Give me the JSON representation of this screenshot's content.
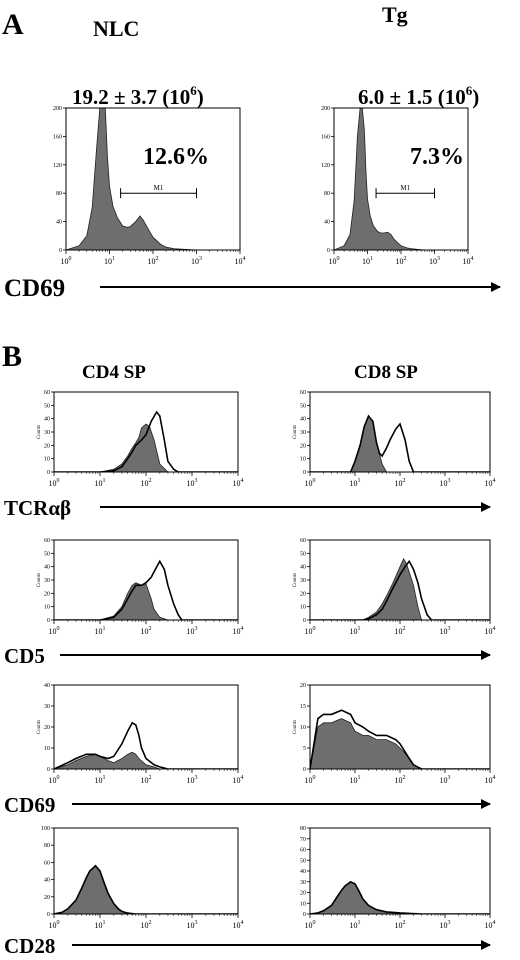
{
  "panelA": {
    "letter": "A",
    "columns": [
      "NLC",
      "Tg"
    ],
    "stats": [
      "19.2 ± 3.7 (10",
      "6.0 ± 1.5 (10"
    ],
    "stat_exp": "6",
    "stat_close": ")",
    "percents": [
      "12.6%",
      "7.3%"
    ],
    "marker": "M1",
    "axis": "CD69"
  },
  "panelB": {
    "letter": "B",
    "columns": [
      "CD4 SP",
      "CD8 SP"
    ],
    "counts_label": "Counts",
    "rows": [
      "TCRαβ",
      "CD5",
      "CD69",
      "CD28"
    ]
  },
  "colors": {
    "fill": "#6e6e6e",
    "line": "#000000"
  },
  "chart_data": [
    {
      "type": "area",
      "id": "A-NLC",
      "xscale": "log",
      "xlim": [
        1,
        10000
      ],
      "ylim": [
        0,
        200
      ],
      "yticks": [
        0,
        40,
        80,
        120,
        160,
        200
      ],
      "xticks": [
        "10^0",
        "10^1",
        "10^2",
        "10^3",
        "10^4"
      ],
      "gate": {
        "label": "M1",
        "x": [
          18,
          1000
        ],
        "percent": "12.6%"
      },
      "series": [
        {
          "style": "filled",
          "x": [
            1,
            2,
            3,
            4,
            5,
            6,
            7,
            8,
            9,
            10,
            12,
            15,
            20,
            25,
            30,
            40,
            50,
            60,
            80,
            100,
            150,
            200,
            300,
            500,
            1000,
            10000
          ],
          "y": [
            0,
            6,
            20,
            60,
            140,
            240,
            250,
            200,
            130,
            90,
            62,
            46,
            34,
            32,
            33,
            40,
            48,
            42,
            28,
            18,
            8,
            4,
            2,
            1,
            0,
            0
          ]
        }
      ]
    },
    {
      "type": "area",
      "id": "A-Tg",
      "xscale": "log",
      "xlim": [
        1,
        10000
      ],
      "ylim": [
        0,
        200
      ],
      "yticks": [
        0,
        40,
        80,
        120,
        160,
        200
      ],
      "xticks": [
        "10^0",
        "10^1",
        "10^2",
        "10^3",
        "10^4"
      ],
      "gate": {
        "label": "M1",
        "x": [
          18,
          1000
        ],
        "percent": "7.3%"
      },
      "series": [
        {
          "style": "filled",
          "x": [
            1,
            2,
            3,
            4,
            5,
            6,
            7,
            8,
            9,
            10,
            12,
            15,
            20,
            25,
            30,
            40,
            50,
            60,
            80,
            100,
            150,
            200,
            300,
            500,
            1000,
            10000
          ],
          "y": [
            0,
            6,
            22,
            70,
            160,
            260,
            250,
            170,
            110,
            72,
            48,
            34,
            26,
            24,
            24,
            25,
            22,
            16,
            10,
            6,
            3,
            2,
            1,
            0,
            0,
            0
          ]
        }
      ]
    },
    {
      "type": "area",
      "id": "B-TCR-CD4",
      "xscale": "log",
      "xlim": [
        1,
        10000
      ],
      "ylim": [
        0,
        60
      ],
      "yticks": [
        0,
        10,
        20,
        30,
        40,
        50,
        60
      ],
      "xticks": [
        "10^0",
        "10^1",
        "10^2",
        "10^3",
        "10^4"
      ],
      "series": [
        {
          "style": "filled",
          "x": [
            1,
            10,
            20,
            30,
            40,
            50,
            60,
            70,
            80,
            100,
            120,
            150,
            200,
            300,
            10000
          ],
          "y": [
            0,
            0,
            2,
            6,
            12,
            18,
            22,
            26,
            33,
            36,
            34,
            24,
            6,
            0,
            0
          ]
        },
        {
          "style": "outline",
          "x": [
            1,
            10,
            20,
            30,
            40,
            50,
            60,
            80,
            100,
            130,
            170,
            200,
            250,
            300,
            400,
            500,
            10000
          ],
          "y": [
            0,
            0,
            1,
            4,
            10,
            15,
            20,
            24,
            28,
            38,
            45,
            42,
            24,
            8,
            2,
            0,
            0
          ]
        }
      ]
    },
    {
      "type": "area",
      "id": "B-TCR-CD8",
      "xscale": "log",
      "xlim": [
        1,
        10000
      ],
      "ylim": [
        0,
        60
      ],
      "yticks": [
        0,
        10,
        20,
        30,
        40,
        50,
        60
      ],
      "xticks": [
        "10^0",
        "10^1",
        "10^2",
        "10^3",
        "10^4"
      ],
      "series": [
        {
          "style": "filled",
          "x": [
            1,
            8,
            10,
            13,
            16,
            20,
            25,
            30,
            40,
            50,
            10000
          ],
          "y": [
            0,
            0,
            8,
            20,
            34,
            42,
            38,
            22,
            6,
            0,
            0
          ]
        },
        {
          "style": "outline",
          "x": [
            1,
            8,
            10,
            13,
            16,
            20,
            25,
            30,
            35,
            40,
            50,
            60,
            80,
            100,
            130,
            160,
            200,
            10000
          ],
          "y": [
            0,
            0,
            8,
            20,
            34,
            42,
            38,
            22,
            14,
            12,
            18,
            24,
            32,
            36,
            24,
            8,
            0,
            0
          ]
        }
      ]
    },
    {
      "type": "area",
      "id": "B-CD5-CD4",
      "xscale": "log",
      "xlim": [
        1,
        10000
      ],
      "ylim": [
        0,
        60
      ],
      "yticks": [
        0,
        10,
        20,
        30,
        40,
        50,
        60
      ],
      "xticks": [
        "10^0",
        "10^1",
        "10^2",
        "10^3",
        "10^4"
      ],
      "series": [
        {
          "style": "filled",
          "x": [
            1,
            10,
            20,
            30,
            40,
            50,
            60,
            80,
            100,
            130,
            150,
            200,
            300,
            10000
          ],
          "y": [
            0,
            0,
            3,
            10,
            20,
            26,
            28,
            26,
            27,
            16,
            8,
            2,
            0,
            0
          ]
        },
        {
          "style": "outline",
          "x": [
            1,
            10,
            20,
            30,
            40,
            50,
            60,
            80,
            100,
            130,
            160,
            200,
            250,
            300,
            400,
            500,
            600,
            10000
          ],
          "y": [
            0,
            0,
            2,
            8,
            16,
            22,
            26,
            26,
            28,
            32,
            38,
            44,
            38,
            26,
            12,
            4,
            0,
            0
          ]
        }
      ]
    },
    {
      "type": "area",
      "id": "B-CD5-CD8",
      "xscale": "log",
      "xlim": [
        1,
        10000
      ],
      "ylim": [
        0,
        60
      ],
      "yticks": [
        0,
        10,
        20,
        30,
        40,
        50,
        60
      ],
      "xticks": [
        "10^0",
        "10^1",
        "10^2",
        "10^3",
        "10^4"
      ],
      "series": [
        {
          "style": "filled",
          "x": [
            1,
            15,
            20,
            30,
            40,
            50,
            70,
            100,
            120,
            140,
            160,
            200,
            250,
            300,
            10000
          ],
          "y": [
            0,
            0,
            2,
            6,
            12,
            18,
            28,
            40,
            46,
            42,
            36,
            26,
            10,
            0,
            0
          ]
        },
        {
          "style": "outline",
          "x": [
            1,
            15,
            20,
            30,
            40,
            50,
            70,
            100,
            130,
            160,
            200,
            250,
            300,
            400,
            500,
            10000
          ],
          "y": [
            0,
            0,
            1,
            4,
            8,
            14,
            24,
            34,
            40,
            44,
            38,
            28,
            16,
            4,
            0,
            0
          ]
        }
      ]
    },
    {
      "type": "area",
      "id": "B-CD69-CD4",
      "xscale": "log",
      "xlim": [
        1,
        10000
      ],
      "ylim": [
        0,
        40
      ],
      "yticks": [
        0,
        10,
        20,
        30,
        40
      ],
      "xticks": [
        "10^0",
        "10^1",
        "10^2",
        "10^3",
        "10^4"
      ],
      "series": [
        {
          "style": "filled",
          "x": [
            1,
            2,
            3,
            5,
            8,
            10,
            15,
            20,
            30,
            40,
            50,
            60,
            70,
            100,
            150,
            200,
            10000
          ],
          "y": [
            0,
            2,
            4,
            6,
            7,
            6,
            4,
            3,
            5,
            7,
            8,
            7,
            5,
            2,
            1,
            0,
            0
          ]
        },
        {
          "style": "outline",
          "x": [
            1,
            2,
            3,
            5,
            8,
            10,
            15,
            20,
            30,
            40,
            50,
            60,
            70,
            80,
            100,
            150,
            200,
            300,
            10000
          ],
          "y": [
            0,
            3,
            5,
            7,
            7,
            6,
            5,
            6,
            12,
            18,
            22,
            21,
            16,
            10,
            5,
            2,
            1,
            0,
            0
          ]
        }
      ]
    },
    {
      "type": "area",
      "id": "B-CD69-CD8",
      "xscale": "log",
      "xlim": [
        1,
        10000
      ],
      "ylim": [
        0,
        20
      ],
      "yticks": [
        0,
        5,
        10,
        15,
        20
      ],
      "xticks": [
        "10^0",
        "10^1",
        "10^2",
        "10^3",
        "10^4"
      ],
      "series": [
        {
          "style": "filled",
          "x": [
            1,
            1.5,
            2,
            3,
            5,
            8,
            10,
            15,
            20,
            30,
            50,
            80,
            100,
            150,
            200,
            300,
            10000
          ],
          "y": [
            0,
            10,
            11,
            11,
            12,
            11,
            9,
            8,
            8,
            7,
            7,
            6,
            5,
            3,
            1,
            0,
            0
          ]
        },
        {
          "style": "outline",
          "x": [
            1,
            1.5,
            2,
            3,
            5,
            8,
            10,
            15,
            20,
            30,
            50,
            80,
            100,
            150,
            200,
            300,
            10000
          ],
          "y": [
            0,
            12,
            13,
            13,
            14,
            13,
            11,
            10,
            9,
            8,
            8,
            7,
            6,
            3,
            1,
            0,
            0
          ]
        }
      ]
    },
    {
      "type": "area",
      "id": "B-CD28-CD4",
      "xscale": "log",
      "xlim": [
        1,
        10000
      ],
      "ylim": [
        0,
        100
      ],
      "yticks": [
        0,
        20,
        40,
        60,
        80,
        100
      ],
      "xticks": [
        "10^0",
        "10^1",
        "10^2",
        "10^3",
        "10^4"
      ],
      "series": [
        {
          "style": "filled",
          "x": [
            1,
            1.5,
            2,
            3,
            4,
            5,
            6,
            8,
            10,
            12,
            15,
            20,
            25,
            30,
            40,
            60,
            10000
          ],
          "y": [
            0,
            2,
            6,
            16,
            30,
            42,
            50,
            56,
            50,
            38,
            24,
            12,
            6,
            3,
            1,
            0,
            0
          ]
        },
        {
          "style": "outline",
          "x": [
            1,
            1.5,
            2,
            3,
            4,
            5,
            6,
            8,
            10,
            12,
            15,
            20,
            25,
            30,
            40,
            60,
            10000
          ],
          "y": [
            0,
            2,
            6,
            16,
            30,
            42,
            50,
            56,
            50,
            38,
            24,
            12,
            6,
            3,
            1,
            0,
            0
          ]
        }
      ]
    },
    {
      "type": "area",
      "id": "B-CD28-CD8",
      "xscale": "log",
      "xlim": [
        1,
        10000
      ],
      "ylim": [
        0,
        80
      ],
      "yticks": [
        0,
        10,
        20,
        30,
        40,
        50,
        60,
        70,
        80
      ],
      "xticks": [
        "10^0",
        "10^1",
        "10^2",
        "10^3",
        "10^4"
      ],
      "series": [
        {
          "style": "filled",
          "x": [
            1,
            1.5,
            2,
            3,
            4,
            5,
            6,
            8,
            10,
            12,
            15,
            20,
            30,
            50,
            100,
            300,
            10000
          ],
          "y": [
            0,
            1,
            3,
            8,
            16,
            22,
            26,
            30,
            28,
            22,
            14,
            8,
            4,
            2,
            1,
            0,
            0
          ]
        },
        {
          "style": "outline",
          "x": [
            1,
            1.5,
            2,
            3,
            4,
            5,
            6,
            8,
            10,
            12,
            15,
            20,
            30,
            50,
            100,
            300,
            10000
          ],
          "y": [
            0,
            1,
            3,
            8,
            16,
            22,
            26,
            30,
            28,
            22,
            14,
            8,
            4,
            2,
            1,
            0,
            0
          ]
        }
      ]
    }
  ]
}
